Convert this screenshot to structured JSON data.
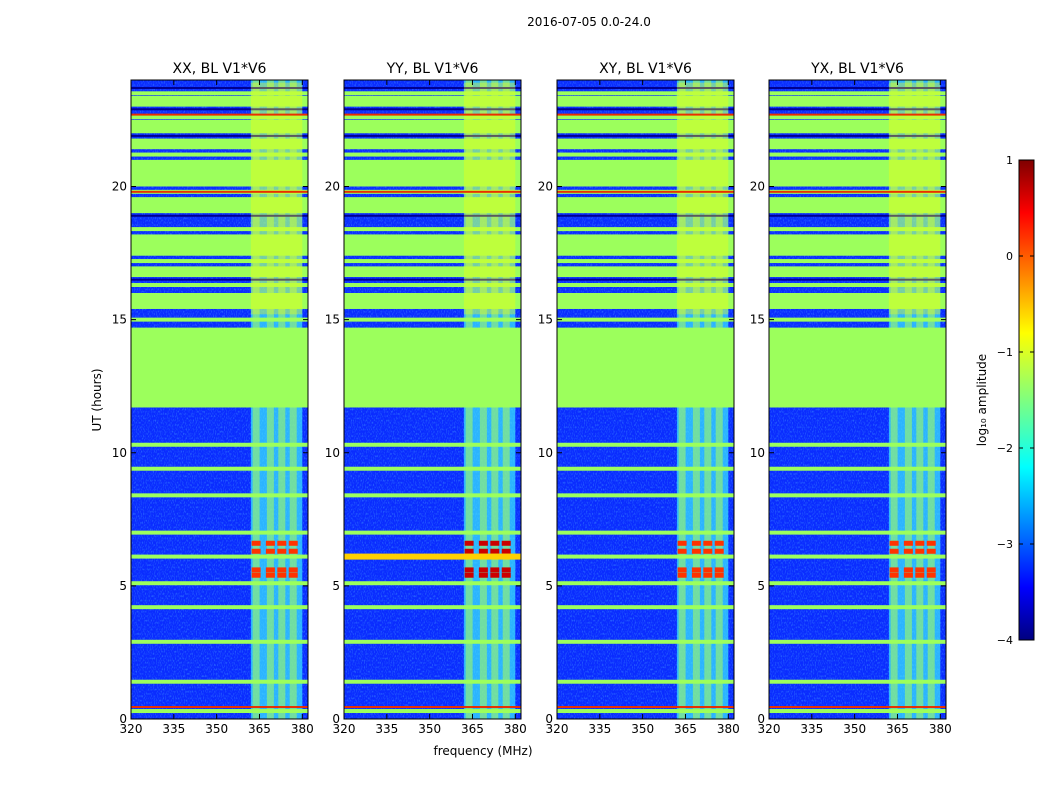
{
  "chart_data": {
    "type": "heatmap",
    "title": "2016-07-05 0.0-24.0",
    "xlabel": "frequency (MHz)",
    "ylabel": "UT (hours)",
    "xlim": [
      320,
      382
    ],
    "ylim": [
      0,
      24
    ],
    "xticks": [
      320,
      335,
      350,
      365,
      380
    ],
    "yticks": [
      0,
      5,
      10,
      15,
      20
    ],
    "ytick_labels": [
      "0",
      "5",
      "10",
      "15",
      "20"
    ],
    "panels": [
      {
        "title": "XX, BL V1*V6",
        "pol": "XX",
        "baseline": "V1*V6"
      },
      {
        "title": "YY, BL V1*V6",
        "pol": "YY",
        "baseline": "V1*V6"
      },
      {
        "title": "XY, BL V1*V6",
        "pol": "XY",
        "baseline": "V1*V6"
      },
      {
        "title": "YX, BL V1*V6",
        "pol": "YX",
        "baseline": "V1*V6"
      }
    ],
    "signal_band_mhz": [
      362,
      380
    ],
    "signal_channels_mhz": [
      364,
      369,
      373,
      377
    ],
    "flagged_block_hours": [
      11.7,
      14.7
    ],
    "flagged_hours": [
      0.3,
      1.4,
      2.9,
      4.2,
      5.1,
      6.1,
      7.0,
      8.4,
      9.4,
      10.3,
      15.0,
      16.3,
      17.2,
      18.4,
      19.8,
      21.2,
      22.6,
      23.5
    ],
    "colorbar": {
      "label": "log₁₀ amplitude",
      "min": -4,
      "max": 1,
      "ticks": [
        1,
        0,
        -1,
        -2,
        -3,
        -4
      ],
      "tick_labels": [
        "1",
        "0",
        "−1",
        "−2",
        "−3",
        "−4"
      ],
      "colormap": "jet"
    }
  }
}
